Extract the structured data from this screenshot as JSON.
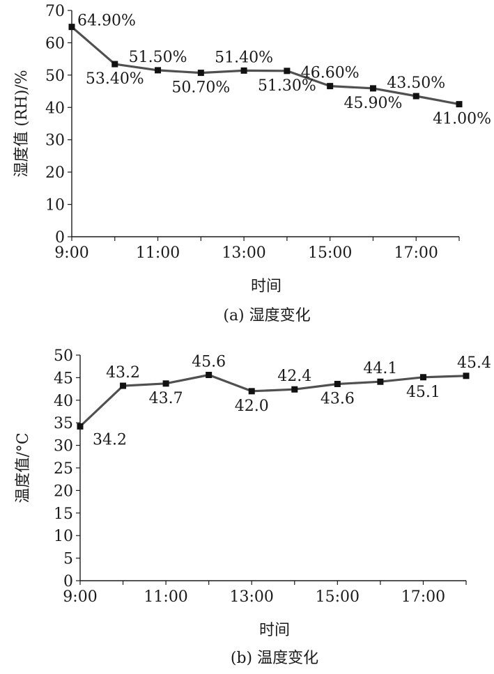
{
  "chart_data": [
    {
      "type": "line",
      "caption": "(a) 湿度变化",
      "xlabel": "时间",
      "ylabel": "湿度值 (RH)/%",
      "x": [
        9,
        10,
        11,
        12,
        13,
        14,
        15,
        16,
        17,
        18
      ],
      "x_tick_labels": [
        "9:00",
        "11:00",
        "13:00",
        "15:00",
        "17:00"
      ],
      "x_tick_values": [
        9,
        11,
        13,
        15,
        17
      ],
      "xlim": [
        9,
        18
      ],
      "ylim": [
        0,
        70
      ],
      "y_ticks": [
        0,
        10,
        20,
        30,
        40,
        50,
        60,
        70
      ],
      "series": [
        {
          "values": [
            64.9,
            53.4,
            51.5,
            50.7,
            51.4,
            51.3,
            46.6,
            45.9,
            43.5,
            41.0
          ],
          "labels": [
            "64.90%",
            "53.40%",
            "51.50%",
            "50.70%",
            "51.40%",
            "51.30%",
            "46.60%",
            "45.90%",
            "43.50%",
            "41.00%"
          ],
          "label_positions": [
            "right",
            "below",
            "above",
            "below",
            "above",
            "below",
            "above",
            "below",
            "above",
            "below"
          ]
        }
      ],
      "grid": false,
      "marker": "square",
      "line_color": "#505050"
    },
    {
      "type": "line",
      "caption": "(b) 温度变化",
      "xlabel": "时间",
      "ylabel": "温度值/°C",
      "x": [
        9,
        10,
        11,
        12,
        13,
        14,
        15,
        16,
        17,
        18
      ],
      "x_tick_labels": [
        "9:00",
        "11:00",
        "13:00",
        "15:00",
        "17:00"
      ],
      "x_tick_values": [
        9,
        11,
        13,
        15,
        17
      ],
      "xlim": [
        9,
        18
      ],
      "ylim": [
        0,
        50
      ],
      "y_ticks": [
        0,
        5,
        10,
        15,
        20,
        25,
        30,
        35,
        40,
        45,
        50
      ],
      "series": [
        {
          "values": [
            34.2,
            43.2,
            43.7,
            45.6,
            42.0,
            42.4,
            43.6,
            44.1,
            45.1,
            45.4
          ],
          "labels": [
            "34.2",
            "43.2",
            "43.7",
            "45.6",
            "42.0",
            "42.4",
            "43.6",
            "44.1",
            "45.1",
            "45.4"
          ],
          "label_positions": [
            "below",
            "above",
            "below",
            "above",
            "below",
            "above",
            "below",
            "above",
            "below",
            "above"
          ]
        }
      ],
      "grid": false,
      "marker": "square",
      "line_color": "#505050"
    }
  ]
}
